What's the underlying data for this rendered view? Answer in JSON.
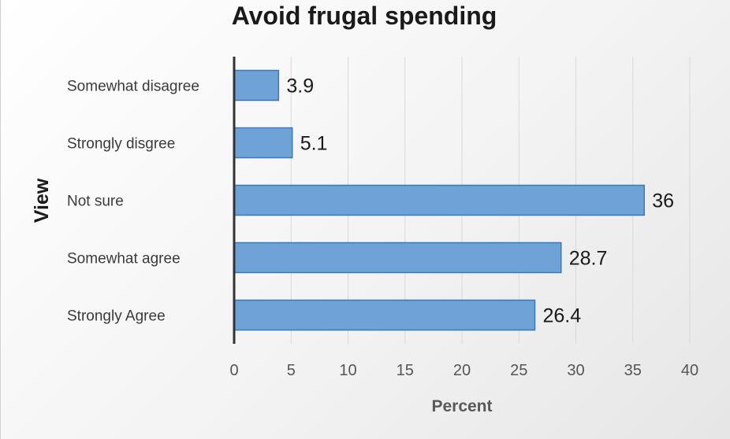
{
  "chart_data": {
    "type": "bar",
    "orientation": "horizontal",
    "title": "Avoid frugal spending",
    "xlabel": "Percent",
    "ylabel": "View",
    "categories": [
      "Somewhat disagree",
      "Strongly disgree",
      "Not sure",
      "Somewhat agree",
      "Strongly Agree"
    ],
    "values": [
      3.9,
      5.1,
      36,
      28.7,
      26.4
    ],
    "data_labels": [
      "3.9",
      "5.1",
      "36",
      "28.7",
      "26.4"
    ],
    "xlim": [
      0,
      40
    ],
    "xticks": [
      0,
      5,
      10,
      15,
      20,
      25,
      30,
      35,
      40
    ],
    "grid": "vertical",
    "legend": "none",
    "colors": {
      "bar_fill": "#6fa3d8",
      "bar_stroke": "#3a78b8",
      "grid": "#d9d9d9",
      "axis": "#333333"
    }
  }
}
